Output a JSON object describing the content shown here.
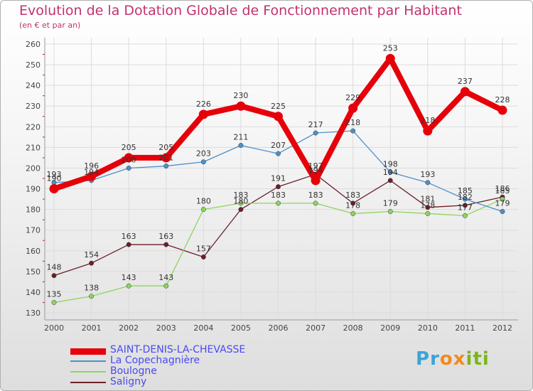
{
  "header": {
    "title": "Evolution de la Dotation Globale de Fonctionnement par Habitant",
    "subtitle": "(en € et par an)"
  },
  "brand": {
    "logo_letters": [
      "P",
      "r",
      "o",
      "x",
      "i",
      "t",
      "i"
    ],
    "logo_colors": [
      "#3ba3d8",
      "#3ba3d8",
      "#f28a1d",
      "#f28a1d",
      "#7ab51d",
      "#7ab51d",
      "#7ab51d"
    ]
  },
  "chart_data": {
    "type": "line",
    "title": "Evolution de la Dotation Globale de Fonctionnement par Habitant",
    "subtitle": "(en € et par an)",
    "xlabel": "",
    "ylabel": "",
    "categories": [
      "2000",
      "2001",
      "2002",
      "2003",
      "2004",
      "2005",
      "2006",
      "2007",
      "2008",
      "2009",
      "2010",
      "2011",
      "2012"
    ],
    "ylim": [
      130,
      260
    ],
    "yticks": [
      130,
      140,
      150,
      160,
      170,
      180,
      190,
      200,
      210,
      220,
      230,
      240,
      250,
      260
    ],
    "grid": true,
    "legend_position": "bottom-left",
    "series": [
      {
        "name": "Saligny",
        "color": "#6b1f2a",
        "values": [
          148,
          154,
          163,
          163,
          157,
          180,
          191,
          197,
          183,
          194,
          181,
          182,
          186
        ],
        "labels": [
          "148",
          "154",
          "163",
          "163",
          "157",
          "180",
          "191",
          "197",
          "183",
          "194",
          "181",
          "182",
          "186"
        ]
      },
      {
        "name": "Boulogne",
        "color": "#8fd45f",
        "values": [
          135,
          138,
          143,
          143,
          180,
          183,
          183,
          183,
          178,
          179,
          178,
          177,
          185
        ],
        "labels": [
          "135",
          "138",
          "143",
          "143",
          "180",
          "183",
          "183",
          "183",
          "178",
          "179",
          "178",
          "177",
          "185"
        ]
      },
      {
        "name": "La Copechagnière",
        "color": "#4d8fc9",
        "values": [
          193,
          194,
          200,
          201,
          203,
          211,
          207,
          217,
          218,
          198,
          193,
          185,
          179
        ],
        "labels": [
          "193",
          "194",
          "200",
          "201",
          "203",
          "211",
          "207",
          "217",
          "218",
          "198",
          "193",
          "185",
          "179"
        ]
      },
      {
        "name": "SAINT-DENIS-LA-CHEVASSE",
        "color": "#e6000a",
        "values": [
          190,
          196,
          205,
          205,
          226,
          230,
          225,
          194,
          229,
          253,
          218,
          237,
          228
        ],
        "labels": [
          "190",
          "196",
          "205",
          "205",
          "226",
          "230",
          "225",
          "194",
          "229",
          "253",
          "218",
          "237",
          "228"
        ]
      }
    ],
    "legend": [
      "SAINT-DENIS-LA-CHEVASSE",
      "La Copechagnière",
      "Boulogne",
      "Saligny"
    ]
  }
}
